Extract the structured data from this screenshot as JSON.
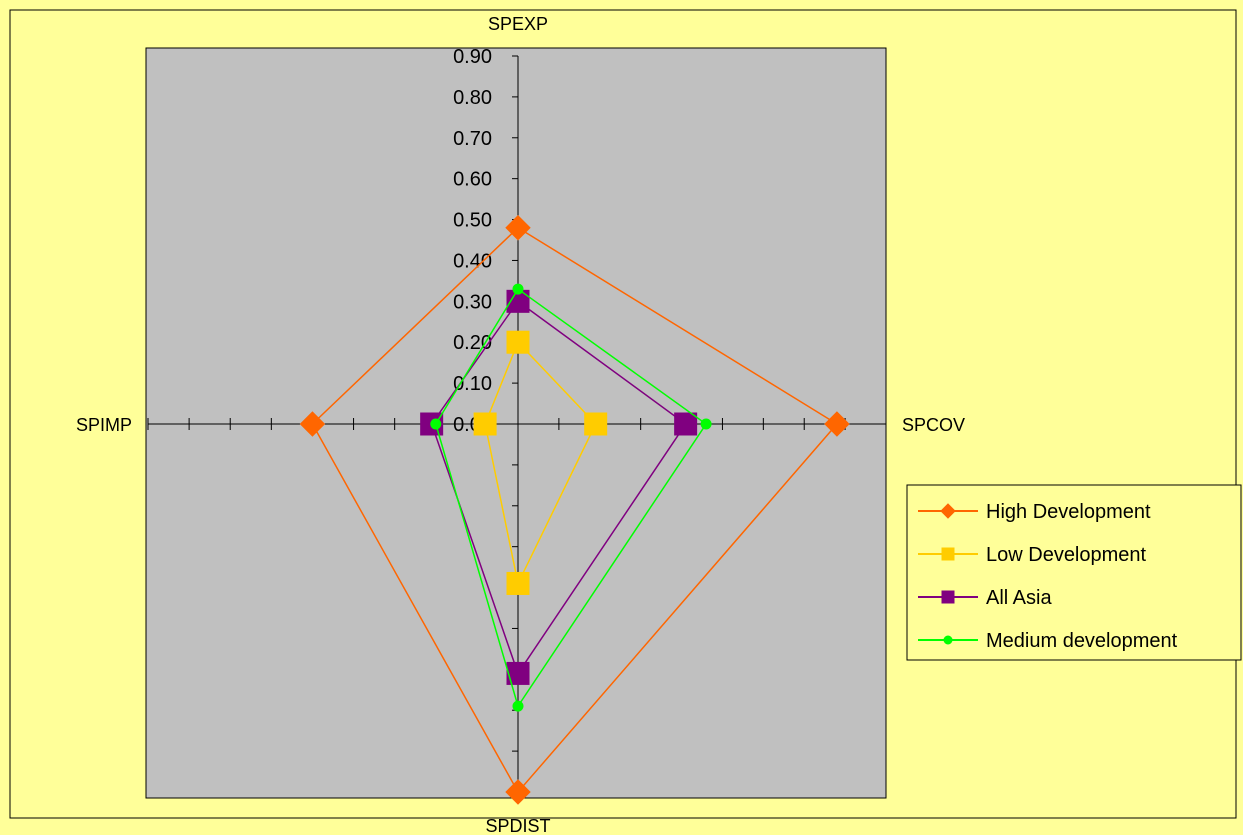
{
  "chart_data": {
    "type": "radar",
    "axes": [
      "SPEXP",
      "SPCOV",
      "SPDIST",
      "SPIMP"
    ],
    "scale_ticks": [
      "0.00",
      "0.10",
      "0.20",
      "0.30",
      "0.40",
      "0.50",
      "0.60",
      "0.70",
      "0.80",
      "0.90"
    ],
    "rmax": 0.9,
    "grid": false,
    "legend_position": "right",
    "series": [
      {
        "name": "High Development",
        "color": "#ff6600",
        "marker": "diamond",
        "values": [
          0.48,
          0.78,
          0.9,
          0.5
        ]
      },
      {
        "name": "Low Development",
        "color": "#ffcc00",
        "marker": "square",
        "values": [
          0.2,
          0.19,
          0.39,
          0.08
        ]
      },
      {
        "name": "All Asia",
        "color": "#800080",
        "marker": "square",
        "values": [
          0.3,
          0.41,
          0.61,
          0.21
        ]
      },
      {
        "name": "Medium development",
        "color": "#00ff00",
        "marker": "circle",
        "values": [
          0.33,
          0.46,
          0.69,
          0.2
        ]
      }
    ]
  }
}
